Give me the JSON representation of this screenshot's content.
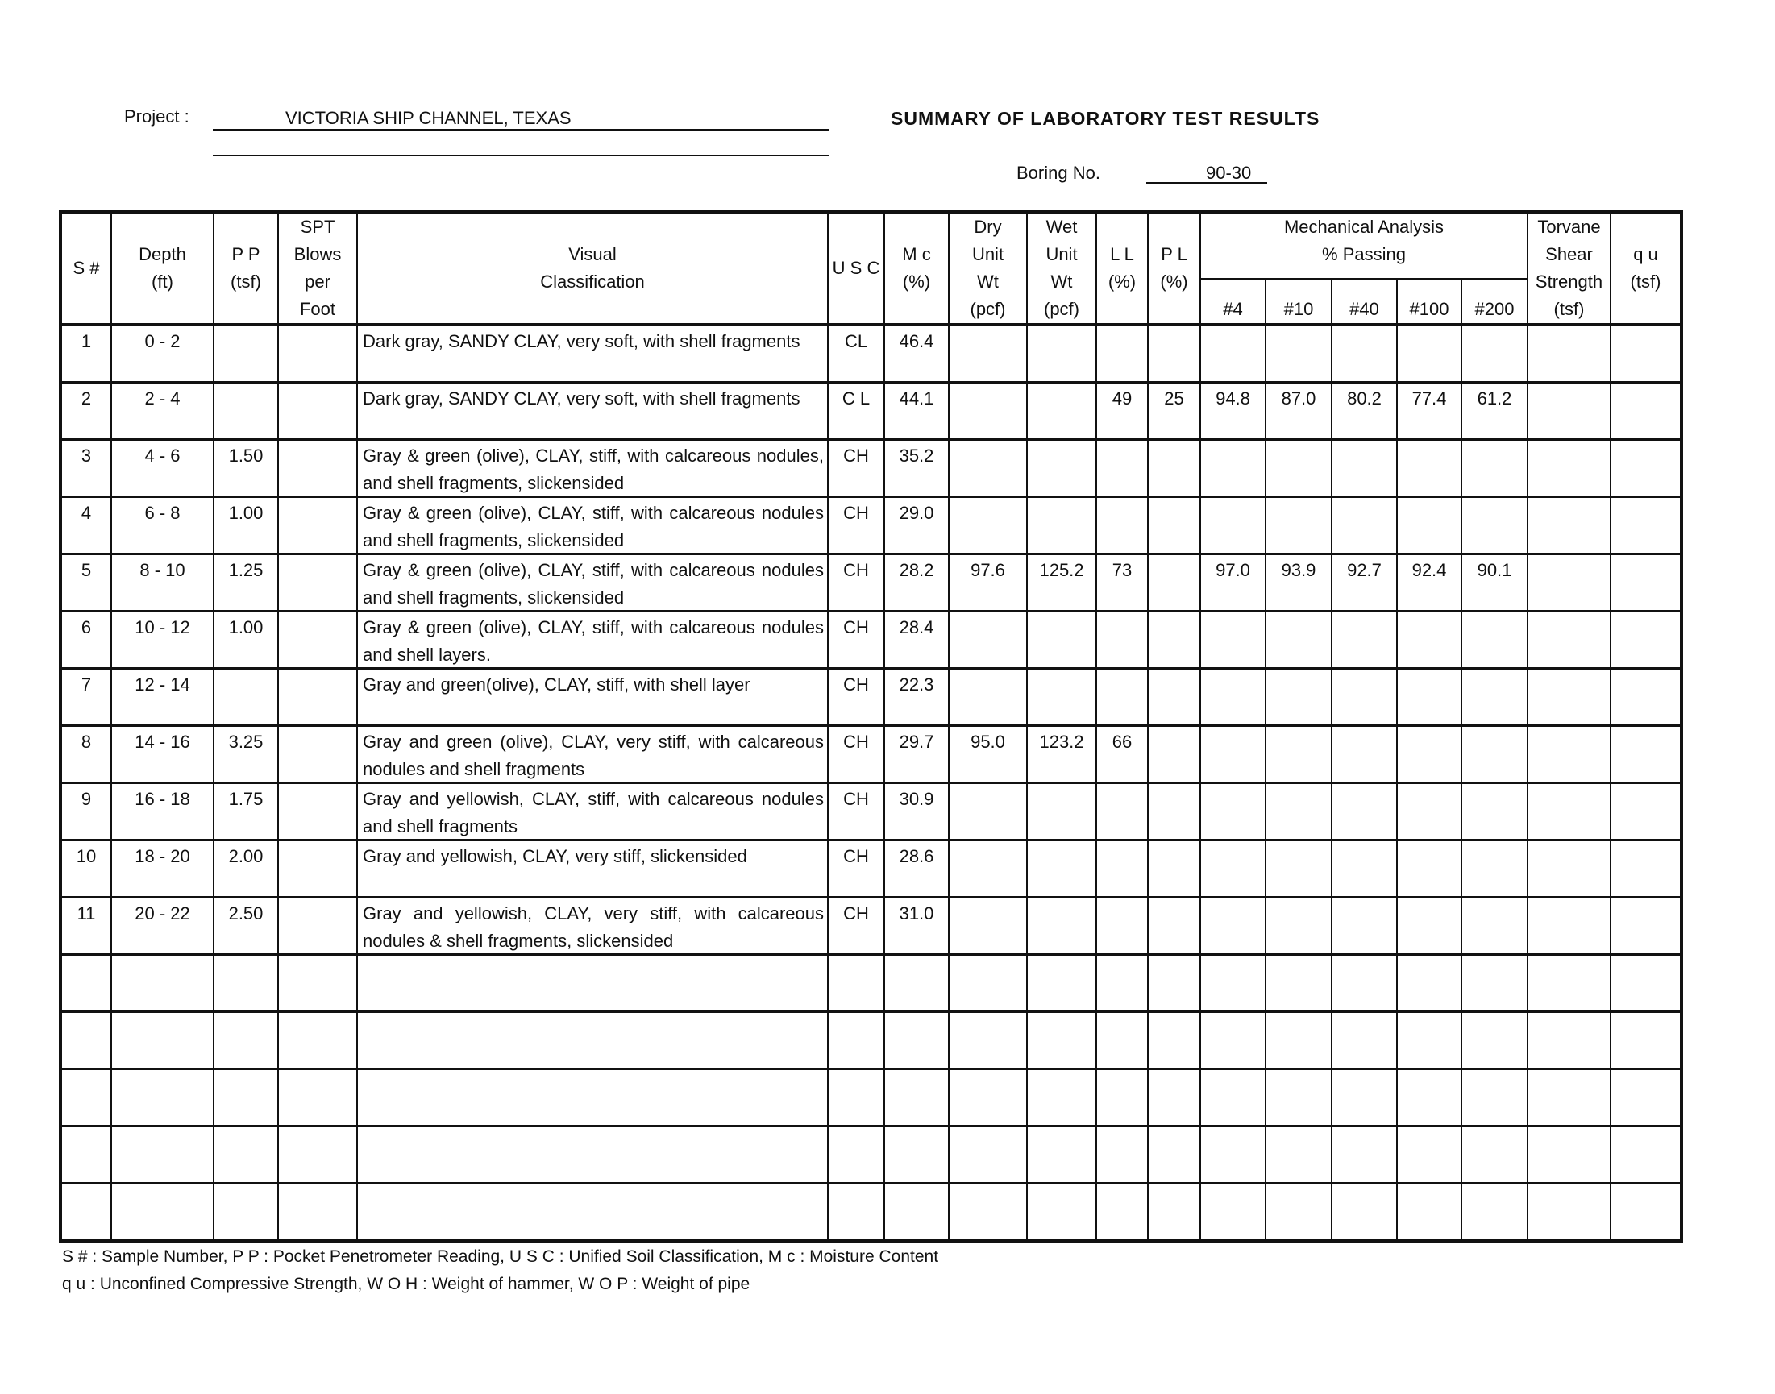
{
  "header": {
    "project_label": "Project :",
    "project_value": "VICTORIA SHIP CHANNEL, TEXAS",
    "title": "SUMMARY OF LABORATORY TEST RESULTS",
    "boring_label": "Boring No.",
    "boring_value": "90-30"
  },
  "columns": {
    "s": "S #",
    "depth": [
      "Depth",
      "(ft)"
    ],
    "pp": [
      "P P",
      "(tsf)"
    ],
    "spt": [
      "SPT",
      "Blows",
      "per",
      "Foot"
    ],
    "visual": [
      "Visual",
      "Classification"
    ],
    "usc": "U S C",
    "mc": [
      "M c",
      "(%)"
    ],
    "dry": [
      "Dry",
      "Unit",
      "Wt",
      "(pcf)"
    ],
    "wet": [
      "Wet",
      "Unit",
      "Wt",
      "(pcf)"
    ],
    "ll": [
      "L L",
      "(%)"
    ],
    "pl": [
      "P L",
      "(%)"
    ],
    "mech": [
      "Mechanical Analysis",
      "% Passing"
    ],
    "sieves": [
      "#4",
      "#10",
      "#40",
      "#100",
      "#200"
    ],
    "torvane": [
      "Torvane",
      "Shear",
      "Strength",
      "(tsf)"
    ],
    "qu": [
      "q u",
      "(tsf)"
    ]
  },
  "rows": [
    {
      "s": "1",
      "depth": "0 - 2",
      "pp": "",
      "spt": "",
      "desc": "Dark gray, SANDY CLAY, very soft, with shell fragments",
      "usc": "CL",
      "mc": "46.4",
      "dry": "",
      "wet": "",
      "ll": "",
      "pl": "",
      "p4": "",
      "p10": "",
      "p40": "",
      "p100": "",
      "p200": "",
      "tv": "",
      "qu": ""
    },
    {
      "s": "2",
      "depth": "2 - 4",
      "pp": "",
      "spt": "",
      "desc": "Dark gray, SANDY CLAY, very soft, with shell fragments",
      "usc": "C L",
      "mc": "44.1",
      "dry": "",
      "wet": "",
      "ll": "49",
      "pl": "25",
      "p4": "94.8",
      "p10": "87.0",
      "p40": "80.2",
      "p100": "77.4",
      "p200": "61.2",
      "tv": "",
      "qu": ""
    },
    {
      "s": "3",
      "depth": "4 - 6",
      "pp": "1.50",
      "spt": "",
      "desc": "Gray & green (olive), CLAY, stiff, with calcareous nodules, and shell fragments, slickensided",
      "usc": "CH",
      "mc": "35.2",
      "dry": "",
      "wet": "",
      "ll": "",
      "pl": "",
      "p4": "",
      "p10": "",
      "p40": "",
      "p100": "",
      "p200": "",
      "tv": "",
      "qu": ""
    },
    {
      "s": "4",
      "depth": "6 - 8",
      "pp": "1.00",
      "spt": "",
      "desc": "Gray & green (olive), CLAY, stiff, with calcareous nodules and shell fragments, slickensided",
      "usc": "CH",
      "mc": "29.0",
      "dry": "",
      "wet": "",
      "ll": "",
      "pl": "",
      "p4": "",
      "p10": "",
      "p40": "",
      "p100": "",
      "p200": "",
      "tv": "",
      "qu": ""
    },
    {
      "s": "5",
      "depth": "8 - 10",
      "pp": "1.25",
      "spt": "",
      "desc": "Gray & green (olive), CLAY, stiff, with calcareous nodules and shell fragments, slickensided",
      "usc": "CH",
      "mc": "28.2",
      "dry": "97.6",
      "wet": "125.2",
      "ll": "73",
      "pl": "",
      "p4": "97.0",
      "p10": "93.9",
      "p40": "92.7",
      "p100": "92.4",
      "p200": "90.1",
      "tv": "",
      "qu": ""
    },
    {
      "s": "6",
      "depth": "10 - 12",
      "pp": "1.00",
      "spt": "",
      "desc": "Gray & green (olive), CLAY, stiff, with calcareous nodules and shell layers.",
      "usc": "CH",
      "mc": "28.4",
      "dry": "",
      "wet": "",
      "ll": "",
      "pl": "",
      "p4": "",
      "p10": "",
      "p40": "",
      "p100": "",
      "p200": "",
      "tv": "",
      "qu": ""
    },
    {
      "s": "7",
      "depth": "12 - 14",
      "pp": "",
      "spt": "",
      "desc": "Gray and green(olive), CLAY, stiff, with shell layer",
      "usc": "CH",
      "mc": "22.3",
      "dry": "",
      "wet": "",
      "ll": "",
      "pl": "",
      "p4": "",
      "p10": "",
      "p40": "",
      "p100": "",
      "p200": "",
      "tv": "",
      "qu": ""
    },
    {
      "s": "8",
      "depth": "14 - 16",
      "pp": "3.25",
      "spt": "",
      "desc": "Gray and green (olive), CLAY, very stiff, with calcareous nodules and shell fragments",
      "usc": "CH",
      "mc": "29.7",
      "dry": "95.0",
      "wet": "123.2",
      "ll": "66",
      "pl": "",
      "p4": "",
      "p10": "",
      "p40": "",
      "p100": "",
      "p200": "",
      "tv": "",
      "qu": ""
    },
    {
      "s": "9",
      "depth": "16 - 18",
      "pp": "1.75",
      "spt": "",
      "desc": "Gray and yellowish, CLAY, stiff, with calcareous nodules and shell fragments",
      "usc": "CH",
      "mc": "30.9",
      "dry": "",
      "wet": "",
      "ll": "",
      "pl": "",
      "p4": "",
      "p10": "",
      "p40": "",
      "p100": "",
      "p200": "",
      "tv": "",
      "qu": ""
    },
    {
      "s": "10",
      "depth": "18 - 20",
      "pp": "2.00",
      "spt": "",
      "desc": "Gray and yellowish, CLAY, very stiff, slickensided",
      "usc": "CH",
      "mc": "28.6",
      "dry": "",
      "wet": "",
      "ll": "",
      "pl": "",
      "p4": "",
      "p10": "",
      "p40": "",
      "p100": "",
      "p200": "",
      "tv": "",
      "qu": ""
    },
    {
      "s": "11",
      "depth": "20 - 22",
      "pp": "2.50",
      "spt": "",
      "desc": "Gray and yellowish, CLAY, very stiff, with calcareous nodules & shell fragments, slickensided",
      "usc": "CH",
      "mc": "31.0",
      "dry": "",
      "wet": "",
      "ll": "",
      "pl": "",
      "p4": "",
      "p10": "",
      "p40": "",
      "p100": "",
      "p200": "",
      "tv": "",
      "qu": ""
    },
    {},
    {},
    {},
    {},
    {}
  ],
  "footer": {
    "line1": "S # : Sample Number, P P : Pocket Penetrometer Reading, U S C : Unified Soil Classification, M c : Moisture Content",
    "line2": "q u : Unconfined Compressive Strength, W O H : Weight of hammer, W O P : Weight of pipe"
  }
}
